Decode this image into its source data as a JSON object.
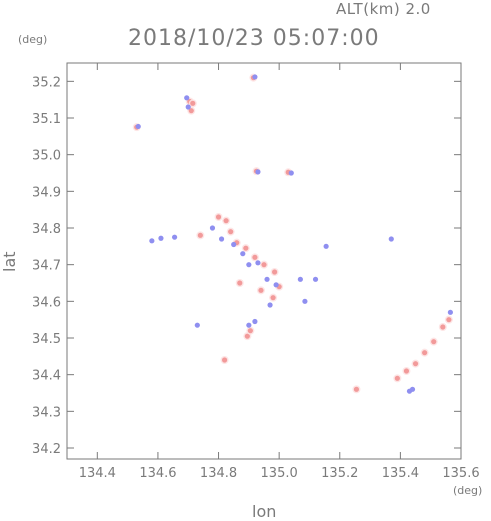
{
  "chart_data": {
    "type": "scatter",
    "header_alt": "ALT(km) 2.0",
    "header_datetime": "2018/10/23 05:07:00",
    "xlabel": "lon",
    "ylabel": "lat",
    "xunit": "(deg)",
    "yunit": "(deg)",
    "xlim": [
      134.3,
      135.6
    ],
    "ylim": [
      34.17,
      35.25
    ],
    "xticks": [
      "134.4",
      "134.6",
      "134.8",
      "135.0",
      "135.2",
      "135.4",
      "135.6"
    ],
    "yticks": [
      "34.2",
      "34.3",
      "34.4",
      "34.5",
      "34.6",
      "34.7",
      "34.8",
      "34.9",
      "35.0",
      "35.1",
      "35.2"
    ],
    "grid": false,
    "colors": {
      "positive": "#f29a9a",
      "negative": "#8f8ff0",
      "faint": "#fde2e2"
    },
    "series": [
      {
        "values": [
          {
            "x": 134.705,
            "y": 35.145
          },
          {
            "x": 134.715,
            "y": 35.14
          },
          {
            "x": 134.71,
            "y": 35.12
          },
          {
            "x": 134.53,
            "y": 35.075
          },
          {
            "x": 134.915,
            "y": 35.21
          },
          {
            "x": 134.925,
            "y": 34.955
          },
          {
            "x": 135.03,
            "y": 34.952
          },
          {
            "x": 134.8,
            "y": 34.83
          },
          {
            "x": 134.825,
            "y": 34.82
          },
          {
            "x": 134.84,
            "y": 34.79
          },
          {
            "x": 134.86,
            "y": 34.76
          },
          {
            "x": 134.89,
            "y": 34.745
          },
          {
            "x": 134.92,
            "y": 34.72
          },
          {
            "x": 134.95,
            "y": 34.7
          },
          {
            "x": 134.985,
            "y": 34.68
          },
          {
            "x": 135.0,
            "y": 34.64
          },
          {
            "x": 134.98,
            "y": 34.61
          },
          {
            "x": 134.74,
            "y": 34.78
          },
          {
            "x": 134.895,
            "y": 34.505
          },
          {
            "x": 134.905,
            "y": 34.52
          },
          {
            "x": 134.82,
            "y": 34.44
          },
          {
            "x": 135.255,
            "y": 34.36
          },
          {
            "x": 135.39,
            "y": 34.39
          },
          {
            "x": 135.42,
            "y": 34.41
          },
          {
            "x": 135.45,
            "y": 34.43
          },
          {
            "x": 135.48,
            "y": 34.46
          },
          {
            "x": 135.51,
            "y": 34.49
          },
          {
            "x": 135.54,
            "y": 34.53
          },
          {
            "x": 135.56,
            "y": 34.55
          },
          {
            "x": 134.94,
            "y": 34.63
          },
          {
            "x": 134.87,
            "y": 34.65
          }
        ]
      },
      {
        "values": [
          {
            "x": 134.695,
            "y": 35.155
          },
          {
            "x": 134.7,
            "y": 35.13
          },
          {
            "x": 134.535,
            "y": 35.077
          },
          {
            "x": 134.92,
            "y": 35.212
          },
          {
            "x": 134.93,
            "y": 34.953
          },
          {
            "x": 135.04,
            "y": 34.95
          },
          {
            "x": 134.58,
            "y": 34.765
          },
          {
            "x": 134.61,
            "y": 34.772
          },
          {
            "x": 134.655,
            "y": 34.775
          },
          {
            "x": 134.78,
            "y": 34.8
          },
          {
            "x": 134.81,
            "y": 34.77
          },
          {
            "x": 134.85,
            "y": 34.755
          },
          {
            "x": 134.88,
            "y": 34.73
          },
          {
            "x": 134.9,
            "y": 34.7
          },
          {
            "x": 134.93,
            "y": 34.705
          },
          {
            "x": 134.96,
            "y": 34.66
          },
          {
            "x": 134.99,
            "y": 34.645
          },
          {
            "x": 135.07,
            "y": 34.66
          },
          {
            "x": 135.155,
            "y": 34.75
          },
          {
            "x": 134.73,
            "y": 34.535
          },
          {
            "x": 134.9,
            "y": 34.535
          },
          {
            "x": 134.92,
            "y": 34.545
          },
          {
            "x": 135.43,
            "y": 34.355
          },
          {
            "x": 135.44,
            "y": 34.36
          },
          {
            "x": 135.565,
            "y": 34.57
          },
          {
            "x": 135.37,
            "y": 34.77
          },
          {
            "x": 135.085,
            "y": 34.6
          },
          {
            "x": 135.12,
            "y": 34.66
          },
          {
            "x": 134.97,
            "y": 34.59
          }
        ]
      }
    ]
  }
}
